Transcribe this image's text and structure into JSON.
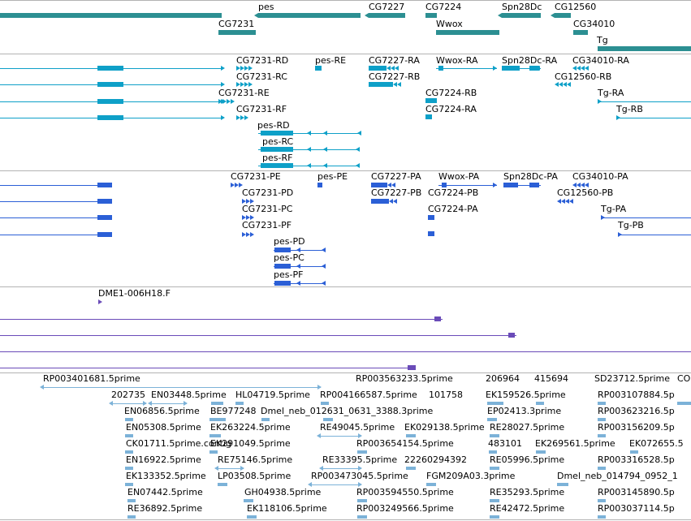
{
  "colors": {
    "gene": "#2c8f92",
    "transcript": "#0ea0c8",
    "cds": "#2b5fd6",
    "est": "#6a4bb8",
    "read": "#7cb2d8",
    "separator": "#b3b3b3"
  },
  "tracks": [
    {
      "name": "gene-track"
    },
    {
      "name": "transcript-track"
    },
    {
      "name": "cds-track"
    },
    {
      "name": "est-track"
    },
    {
      "name": "read-track"
    }
  ],
  "labels": {
    "gene": [
      "pes",
      "CG7227",
      "CG7224",
      "Spn28Dc",
      "CG12560",
      "CG7231",
      "Wwox",
      "CG34010",
      "Tg"
    ],
    "transcript": [
      "CG7231-RD",
      "pes-RE",
      "CG7227-RA",
      "Wwox-RA",
      "Spn28Dc-RA",
      "CG34010-RA",
      "CG7231-RC",
      "CG7227-RB",
      "CG12560-RB",
      "CG7231-RE",
      "CG7224-RB",
      "Tg-RA",
      "CG7231-RF",
      "CG7224-RA",
      "Tg-RB",
      "pes-RD",
      "pes-RC",
      "pes-RF"
    ],
    "cds": [
      "CG7231-PE",
      "pes-PE",
      "CG7227-PA",
      "Wwox-PA",
      "Spn28Dc-PA",
      "CG34010-PA",
      "CG7231-PD",
      "CG7227-PB",
      "CG7224-PB",
      "CG12560-PB",
      "CG7231-PC",
      "CG7224-PA",
      "Tg-PA",
      "CG7231-PF",
      "Tg-PB",
      "pes-PD",
      "pes-PC",
      "pes-PF"
    ],
    "est": [
      "DME1-006H18.F"
    ],
    "read": [
      "RP003401681.5prime",
      "RP003563233.5prime",
      "206964",
      "415694",
      "SD23712.5prime",
      "CO",
      "202735",
      "EN03448.5prime",
      "HL04719.5prime",
      "RP004166587.5prime",
      "101758",
      "EK159526.5prime",
      "RP003107884.5p",
      "EN06856.5prime",
      "BE977248",
      "Dmel_neb_012631_0631_3388.3prime",
      "EP02413.3prime",
      "RP003623216.5p",
      "EN05308.5prime",
      "EK263224.5prime",
      "RE49045.5prime",
      "EK029138.5prime",
      "RE28027.5prime",
      "RP003156209.5p",
      "CK01711.5prime.contig",
      "EK291049.5prime",
      "RP003654154.5prime",
      "483101",
      "EK269561.5prime",
      "EK072655.5",
      "EN16922.5prime",
      "RE75146.5prime",
      "RE33395.5prime",
      "22260294392",
      "RE05996.5prime",
      "RP003316528.5p",
      "EK133352.5prime",
      "LP03508.5prime",
      "RP003473045.5prime",
      "FGM209A03.3prime",
      "Dmel_neb_014794_0952_1",
      "EN07442.5prime",
      "GH04938.5prime",
      "RP003594550.5prime",
      "RE35293.5prime",
      "RP003145890.5p",
      "RE36892.5prime",
      "EK118106.5prime",
      "RP003249566.5prime",
      "RE42472.5prime",
      "RP003037114.5p"
    ]
  }
}
